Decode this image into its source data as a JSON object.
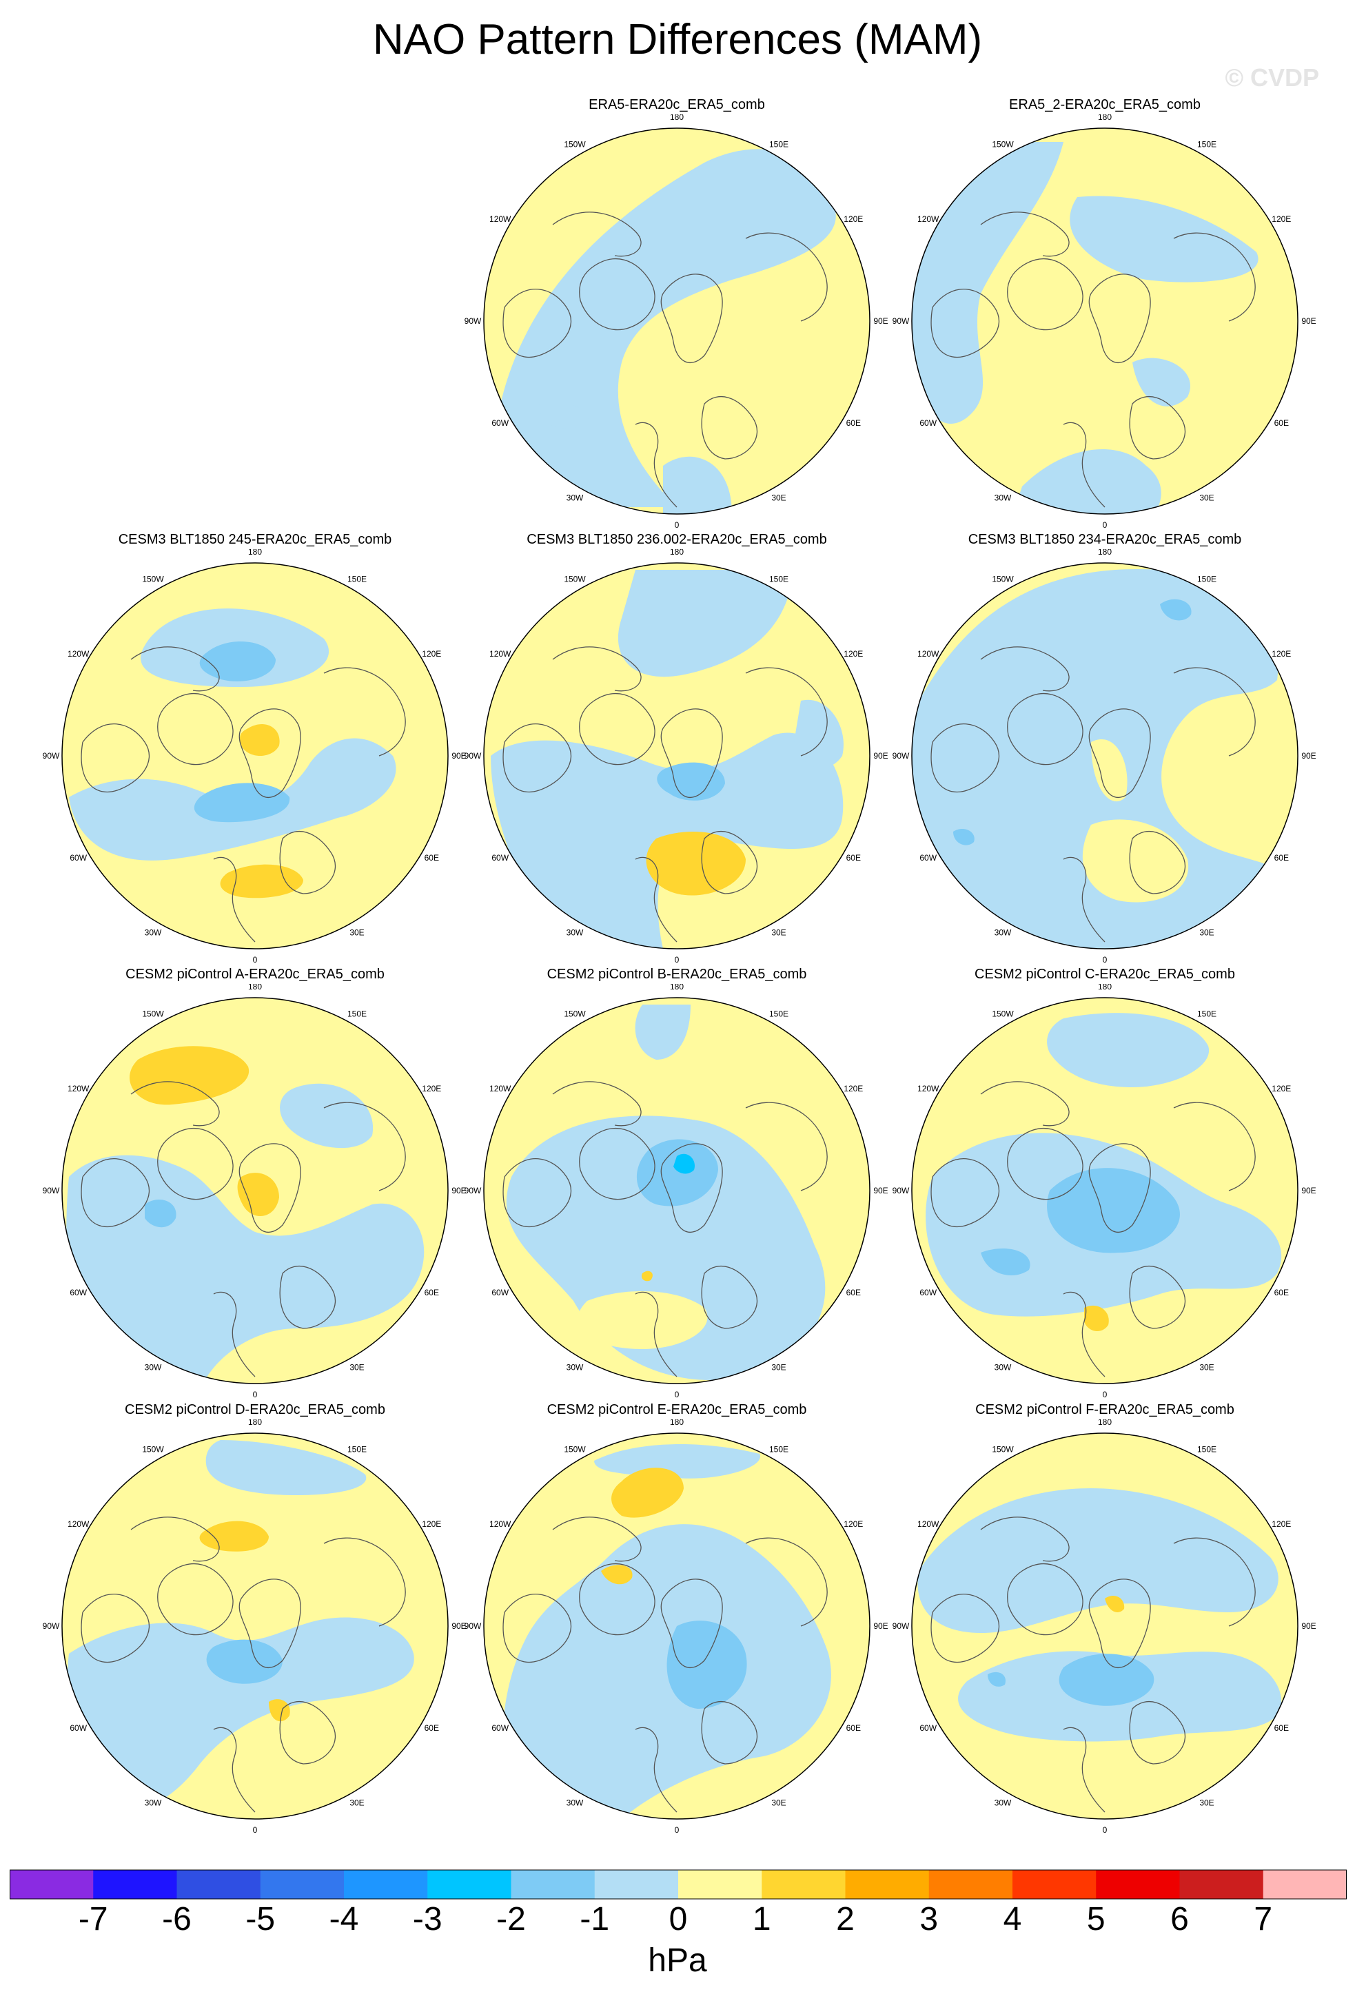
{
  "title": "NAO Pattern Differences (MAM)",
  "watermark": "© CVDP",
  "longitude_labels": [
    "180",
    "150E",
    "120E",
    "90E",
    "60E",
    "30E",
    "0",
    "30W",
    "60W",
    "90W",
    "120W",
    "150W"
  ],
  "panels": [
    {
      "title": "ERA5-ERA20c_ERA5_comb",
      "pattern": 0
    },
    {
      "title": "ERA5_2-ERA20c_ERA5_comb",
      "pattern": 1
    },
    {
      "title": "CESM3 BLT1850 245-ERA20c_ERA5_comb",
      "pattern": 2
    },
    {
      "title": "CESM3 BLT1850 236.002-ERA20c_ERA5_comb",
      "pattern": 3
    },
    {
      "title": "CESM3 BLT1850 234-ERA20c_ERA5_comb",
      "pattern": 4
    },
    {
      "title": "CESM2 piControl A-ERA20c_ERA5_comb",
      "pattern": 5
    },
    {
      "title": "CESM2 piControl B-ERA20c_ERA5_comb",
      "pattern": 6
    },
    {
      "title": "CESM2 piControl C-ERA20c_ERA5_comb",
      "pattern": 7
    },
    {
      "title": "CESM2 piControl D-ERA20c_ERA5_comb",
      "pattern": 8
    },
    {
      "title": "CESM2 piControl E-ERA20c_ERA5_comb",
      "pattern": 9
    },
    {
      "title": "CESM2 piControl F-ERA20c_ERA5_comb",
      "pattern": 10
    }
  ],
  "colorbar": {
    "units": "hPa",
    "tick_labels": [
      "-7",
      "-6",
      "-5",
      "-4",
      "-3",
      "-2",
      "-1",
      "0",
      "1",
      "2",
      "3",
      "4",
      "5",
      "6",
      "7"
    ],
    "colors": [
      "#8a2be2",
      "#1e14ff",
      "#2f4fe3",
      "#3377ee",
      "#1e96ff",
      "#00c5ff",
      "#7ecbf5",
      "#b3def5",
      "#fffa9e",
      "#ffd630",
      "#ffac00",
      "#ff7e00",
      "#ff3700",
      "#ee0000",
      "#cc1e1e",
      "#ffb6b6"
    ]
  }
}
